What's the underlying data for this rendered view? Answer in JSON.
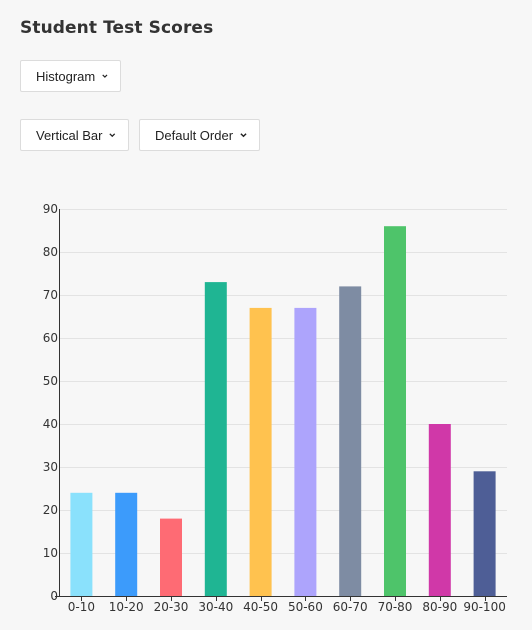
{
  "header": {
    "title": "Student Test Scores"
  },
  "controls": {
    "chart_type": "Histogram",
    "orientation": "Vertical Bar",
    "order": "Default Order"
  },
  "chart_data": {
    "type": "bar",
    "title": "",
    "xlabel": "",
    "ylabel": "",
    "ylim": [
      0,
      90
    ],
    "y_ticks": [
      0,
      10,
      20,
      30,
      40,
      50,
      60,
      70,
      80,
      90
    ],
    "grid": true,
    "categories": [
      "0-10",
      "10-20",
      "20-30",
      "30-40",
      "40-50",
      "50-60",
      "60-70",
      "70-80",
      "80-90",
      "90-100"
    ],
    "values": [
      24,
      24,
      18,
      73,
      67,
      67,
      72,
      86,
      40,
      29
    ],
    "colors": [
      "#8ae1fc",
      "#3c9bfb",
      "#fe6b74",
      "#1fb593",
      "#ffc24f",
      "#ada4fc",
      "#7e8ca3",
      "#4ec46a",
      "#d038a8",
      "#4e5e96"
    ]
  }
}
